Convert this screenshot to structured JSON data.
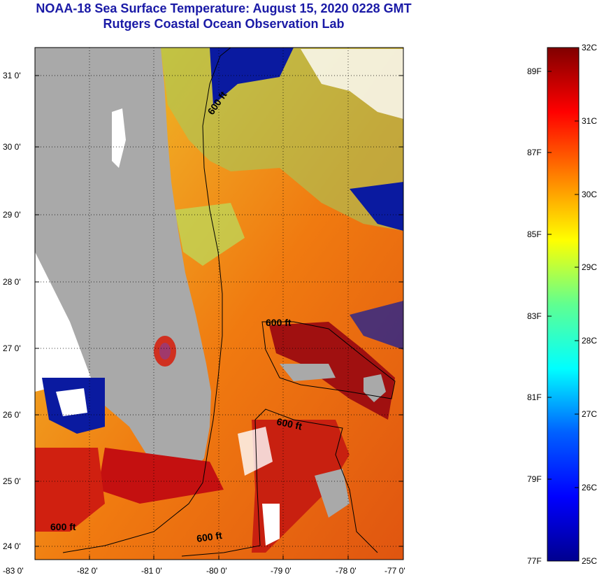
{
  "header": {
    "title": "NOAA-18 Sea Surface Temperature:  August 15, 2020 0228 GMT",
    "subtitle": "Rutgers Coastal Ocean Observation Lab"
  },
  "map": {
    "lat_labels": [
      "31 0'",
      "30 0'",
      "29 0'",
      "28 0'",
      "27 0'",
      "26 0'",
      "25 0'",
      "24 0'"
    ],
    "lon_labels": [
      "-83 0'",
      "-82 0'",
      "-81 0'",
      "-80 0'",
      "-79 0'",
      "-78 0'",
      "-77 0'"
    ],
    "contour_labels": [
      "600 ft",
      "600 ft",
      "600 ft",
      "600 ft",
      "600 ft"
    ],
    "colors": {
      "land": "#a9a9a9",
      "cloud": "#ffffff",
      "warm_sea": "#f07a10",
      "hot_sea": "#c41010",
      "cool_sea": "#e8e020",
      "cold": "#0a1aa0"
    }
  },
  "colorbar": {
    "celsius_labels": [
      "32C",
      "31C",
      "30C",
      "29C",
      "28C",
      "27C",
      "26C",
      "25C"
    ],
    "fahrenheit_labels": [
      "89F",
      "87F",
      "85F",
      "83F",
      "81F",
      "79F",
      "77F"
    ],
    "range_c": [
      25,
      32
    ]
  }
}
